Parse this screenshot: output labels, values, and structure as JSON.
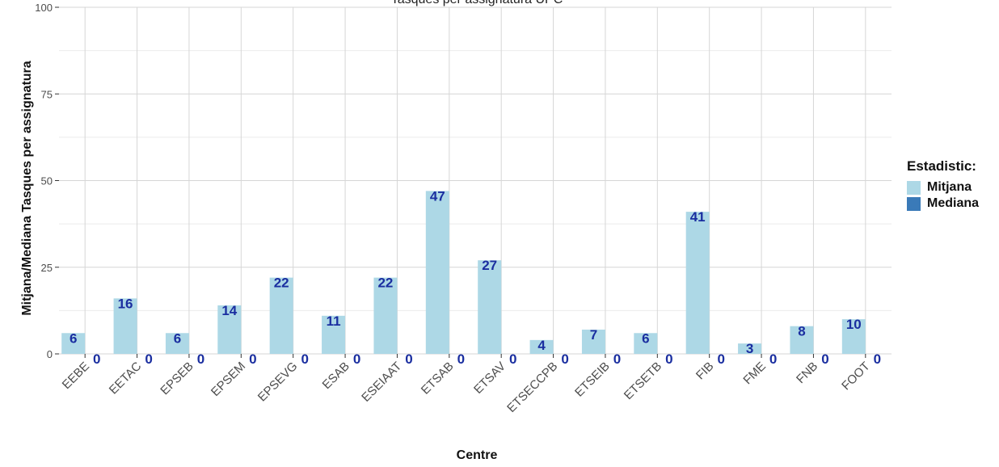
{
  "chart_data": {
    "type": "bar",
    "title": "Tasques per assignatura UPC",
    "xlabel": "Centre",
    "ylabel": "Mitjana/Mediana Tasques per assignatura",
    "ylim": [
      0,
      100
    ],
    "yticks": [
      0,
      25,
      50,
      75,
      100
    ],
    "grid": true,
    "categories": [
      "EEBE",
      "EETAC",
      "EPSEB",
      "EPSEM",
      "EPSEVG",
      "ESAB",
      "ESEIAAT",
      "ETSAB",
      "ETSAV",
      "ETSECCPB",
      "ETSEIB",
      "ETSETB",
      "FIB",
      "FME",
      "FNB",
      "FOOT"
    ],
    "legend_title": "Estadistic:",
    "legend_position": "right",
    "series": [
      {
        "name": "Mitjana",
        "color": "#add8e6",
        "values": [
          6,
          16,
          6,
          14,
          22,
          11,
          22,
          47,
          27,
          4,
          7,
          6,
          41,
          3,
          8,
          10
        ]
      },
      {
        "name": "Mediana",
        "color": "#3a7ab8",
        "values": [
          0,
          0,
          0,
          0,
          0,
          0,
          0,
          0,
          0,
          0,
          0,
          0,
          0,
          0,
          0,
          0
        ]
      }
    ],
    "data_label_color": "#1a2ea0"
  }
}
